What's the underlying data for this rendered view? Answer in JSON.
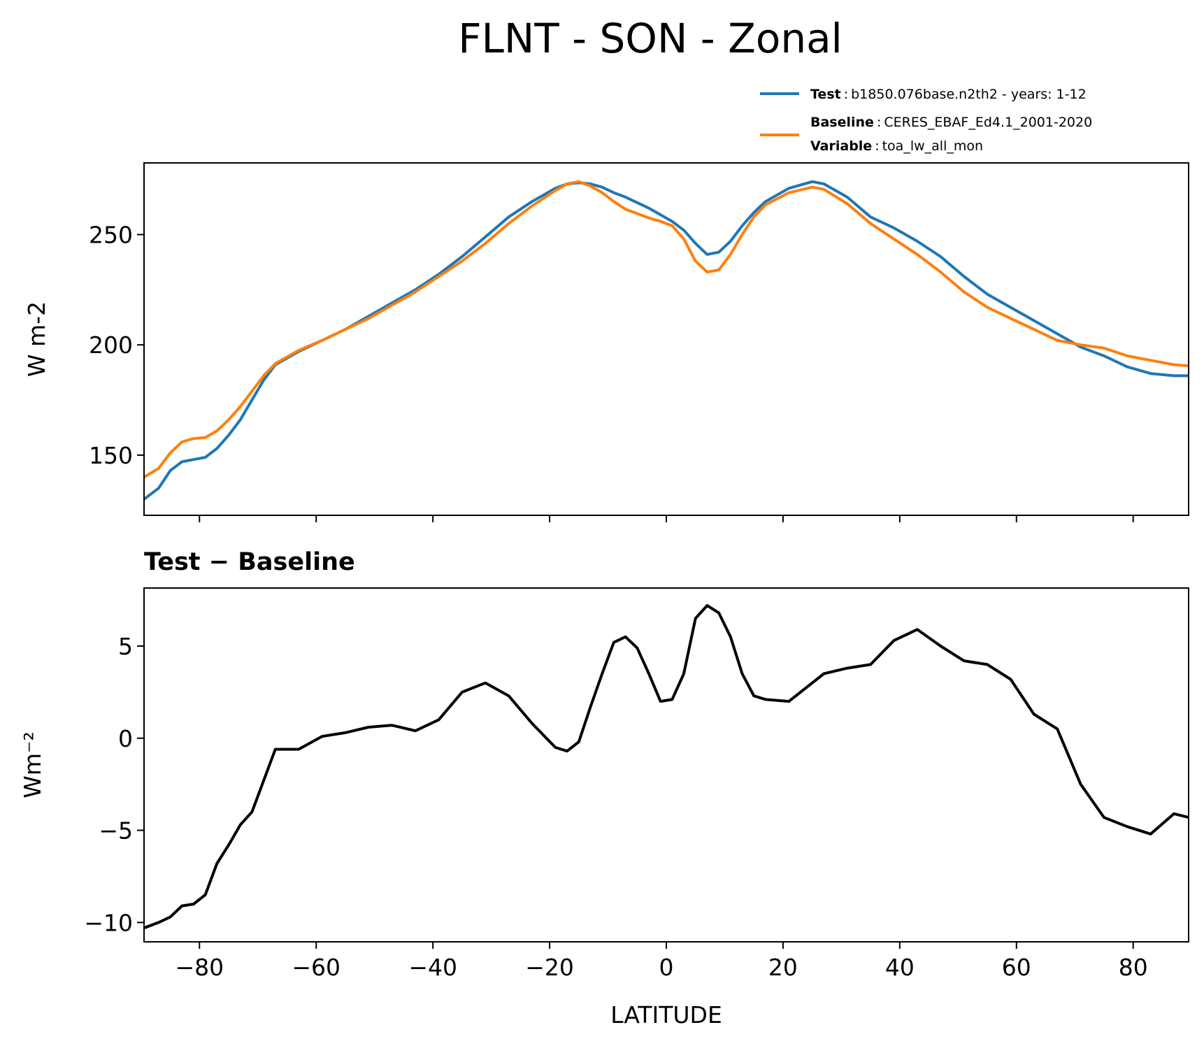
{
  "title": "FLNT - SON - Zonal",
  "legend": {
    "separator": ":",
    "variable_name": "Variable",
    "variable_value": "toa_lw_all_mon"
  },
  "chart_data": [
    {
      "type": "line",
      "ylabel": "W m-2",
      "x": [
        -89.5,
        -87,
        -85,
        -83,
        -81,
        -79,
        -77,
        -75,
        -73,
        -71,
        -69,
        -67,
        -63,
        -59,
        -55,
        -51,
        -47,
        -43,
        -39,
        -35,
        -31,
        -27,
        -23,
        -19,
        -17,
        -15,
        -13,
        -11,
        -9,
        -7,
        -5,
        -3,
        -1,
        1,
        3,
        5,
        7,
        9,
        11,
        13,
        15,
        17,
        21,
        25,
        27,
        31,
        35,
        39,
        43,
        47,
        51,
        55,
        59,
        63,
        67,
        71,
        75,
        79,
        83,
        87,
        89.5
      ],
      "series": [
        {
          "name": "Test",
          "description": "b1850.076base.n2th2 - years: 1-12",
          "color": "#1f77b4",
          "values": [
            130,
            135,
            143,
            147,
            148,
            149,
            153,
            159,
            166,
            175,
            184,
            191,
            197,
            202,
            207,
            213,
            219,
            225,
            232,
            240,
            249,
            258,
            265,
            271,
            273,
            273.5,
            273,
            271.5,
            269,
            267,
            264.5,
            262,
            259,
            256,
            252,
            246,
            241,
            242,
            247,
            254,
            260,
            265,
            271,
            274,
            273,
            267,
            258,
            253,
            247,
            240,
            231,
            223,
            217,
            211,
            205,
            199,
            195,
            190,
            187,
            186,
            186
          ]
        },
        {
          "name": "Baseline",
          "description": "CERES_EBAF_Ed4.1_2001-2020",
          "color": "#ff7f0e",
          "values": [
            140,
            144,
            151,
            156,
            157.5,
            158,
            161,
            166,
            172,
            179,
            186,
            191.5,
            197.5,
            202,
            207,
            212,
            218,
            224,
            231,
            238,
            246,
            255,
            263,
            270,
            273,
            274,
            272,
            269,
            265,
            261.5,
            259.5,
            257.5,
            256,
            254,
            248,
            238,
            233,
            234,
            241,
            250,
            258,
            263.5,
            269,
            271.5,
            270.5,
            264,
            255,
            248,
            241,
            233,
            224,
            217,
            212,
            207,
            202,
            200,
            198.5,
            195,
            193,
            191,
            190.5
          ]
        }
      ],
      "xlim": [
        -89.5,
        89.5
      ],
      "ylim": [
        122.7,
        282.5
      ],
      "yticks": [
        150,
        200,
        250
      ]
    },
    {
      "type": "line",
      "title": "Test − Baseline",
      "xlabel": "LATITUDE",
      "ylabel": "Wm⁻²",
      "x": [
        -89.5,
        -87,
        -85,
        -83,
        -81,
        -79,
        -77,
        -75,
        -73,
        -71,
        -69,
        -67,
        -63,
        -59,
        -55,
        -51,
        -47,
        -43,
        -39,
        -35,
        -31,
        -27,
        -23,
        -19,
        -17,
        -15,
        -13,
        -11,
        -9,
        -7,
        -5,
        -3,
        -1,
        1,
        3,
        5,
        7,
        9,
        11,
        13,
        15,
        17,
        21,
        25,
        27,
        31,
        35,
        39,
        43,
        47,
        51,
        55,
        59,
        63,
        67,
        71,
        75,
        79,
        83,
        87,
        89.5
      ],
      "series": [
        {
          "color": "#000000",
          "values": [
            -10.3,
            -10.0,
            -9.7,
            -9.1,
            -9.0,
            -8.5,
            -6.8,
            -5.8,
            -4.7,
            -4.0,
            -2.3,
            -0.6,
            -0.6,
            0.1,
            0.3,
            0.6,
            0.7,
            0.4,
            1.0,
            2.5,
            3.0,
            2.3,
            0.8,
            -0.5,
            -0.7,
            -0.2,
            1.7,
            3.5,
            5.2,
            5.5,
            4.9,
            3.5,
            2.0,
            2.1,
            3.5,
            6.5,
            7.2,
            6.8,
            5.5,
            3.5,
            2.3,
            2.1,
            2.0,
            3.0,
            3.5,
            3.8,
            4.0,
            5.3,
            5.9,
            5.0,
            4.2,
            4.0,
            3.2,
            1.3,
            0.5,
            -2.5,
            -4.3,
            -4.8,
            -5.2,
            -4.1,
            -4.3
          ]
        }
      ],
      "xlim": [
        -89.5,
        89.5
      ],
      "ylim": [
        -11.05,
        8.15
      ],
      "xticks": [
        {
          "value": -80,
          "label": "−80"
        },
        {
          "value": -60,
          "label": "−60"
        },
        {
          "value": -40,
          "label": "−40"
        },
        {
          "value": -20,
          "label": "−20"
        },
        0,
        20,
        40,
        60,
        80
      ],
      "yticks": [
        {
          "value": -10,
          "label": "−10"
        },
        {
          "value": -5,
          "label": "−5"
        },
        0,
        5
      ]
    }
  ]
}
